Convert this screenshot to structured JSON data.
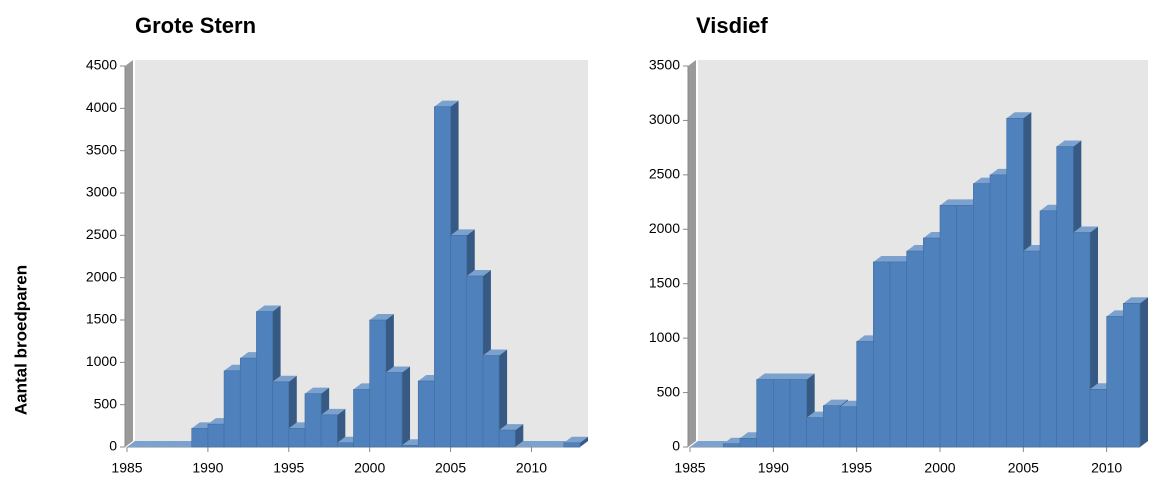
{
  "chart_data": [
    {
      "type": "bar3d",
      "title": "Grote Stern",
      "y_label": "Aantal broedparen",
      "x": [
        1985,
        1986,
        1987,
        1988,
        1989,
        1990,
        1991,
        1992,
        1993,
        1994,
        1995,
        1996,
        1997,
        1998,
        1999,
        2000,
        2001,
        2002,
        2003,
        2004,
        2005,
        2006,
        2007,
        2008,
        2009,
        2010,
        2011,
        2012
      ],
      "values": [
        0,
        0,
        0,
        0,
        220,
        270,
        900,
        1050,
        1600,
        770,
        220,
        630,
        380,
        50,
        680,
        1500,
        880,
        20,
        780,
        4020,
        2500,
        2020,
        1080,
        200,
        0,
        0,
        0,
        50
      ],
      "color": "#4f81bd",
      "xlim": [
        1985,
        2013
      ],
      "xticks": [
        1985,
        1990,
        1995,
        2000,
        2005,
        2010
      ],
      "ylim": [
        0,
        4500
      ],
      "yticks": [
        0,
        500,
        1000,
        1500,
        2000,
        2500,
        3000,
        3500,
        4000,
        4500
      ]
    },
    {
      "type": "bar3d",
      "title": "Visdief",
      "x": [
        1985,
        1986,
        1987,
        1988,
        1989,
        1990,
        1991,
        1992,
        1993,
        1994,
        1995,
        1996,
        1997,
        1998,
        1999,
        2000,
        2001,
        2002,
        2003,
        2004,
        2005,
        2006,
        2007,
        2008,
        2009,
        2010,
        2011
      ],
      "values": [
        0,
        0,
        30,
        80,
        620,
        620,
        620,
        270,
        380,
        370,
        970,
        1700,
        1700,
        1800,
        1920,
        2220,
        2220,
        2420,
        2500,
        3020,
        1800,
        2170,
        2760,
        1970,
        530,
        1200,
        1320
      ],
      "color": "#4f81bd",
      "xlim": [
        1985,
        2012
      ],
      "xticks": [
        1985,
        1990,
        1995,
        2000,
        2005,
        2010
      ],
      "ylim": [
        0,
        3500
      ],
      "yticks": [
        0,
        500,
        1000,
        1500,
        2000,
        2500,
        3000,
        3500
      ]
    }
  ]
}
